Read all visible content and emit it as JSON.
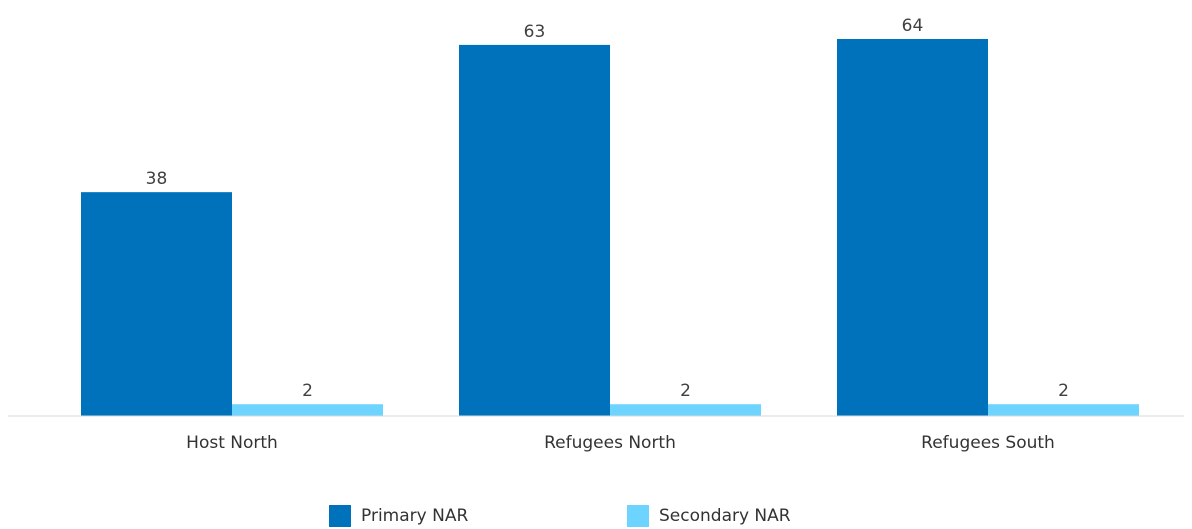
{
  "chart_data": {
    "type": "bar",
    "categories": [
      "Host North",
      "Refugees North",
      "Refugees South"
    ],
    "series": [
      {
        "name": "Primary NAR",
        "values": [
          38,
          63,
          64
        ],
        "color": "#0072bc"
      },
      {
        "name": "Secondary NAR",
        "values": [
          2,
          2,
          2
        ],
        "color": "#6cd4ff"
      }
    ],
    "ylim": [
      0,
      64
    ],
    "grid": false,
    "legend": "bottom",
    "title": "",
    "xlabel": "",
    "ylabel": ""
  }
}
